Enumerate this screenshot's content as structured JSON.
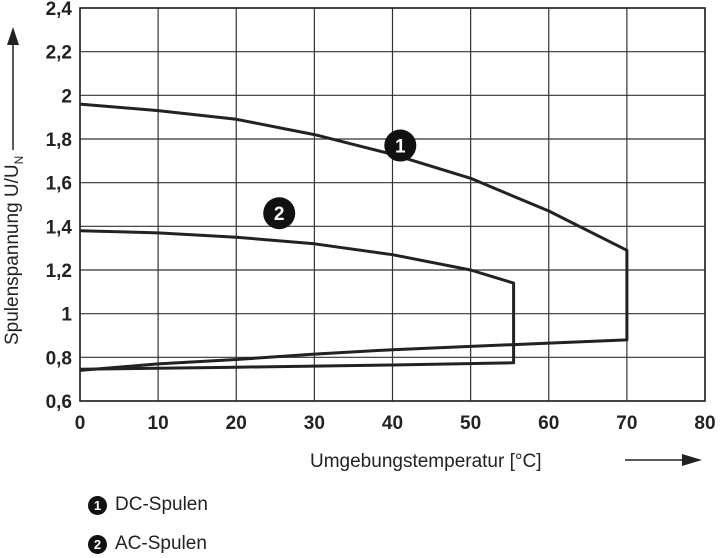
{
  "chart_data": {
    "type": "line",
    "xlabel": "Umgebungstemperatur [°C]",
    "ylabel": "Spulenspannung U/U",
    "ylabel_sub": "N",
    "xlim": [
      0,
      80
    ],
    "ylim": [
      0.6,
      2.4
    ],
    "xticks": [
      "0",
      "10",
      "20",
      "30",
      "40",
      "50",
      "60",
      "70",
      "80"
    ],
    "yticks": [
      "0,6",
      "0,8",
      "1",
      "1,2",
      "1,4",
      "1,6",
      "1,8",
      "2",
      "2,2",
      "2,4"
    ],
    "grid": true,
    "series": [
      {
        "marker": "1",
        "name": "DC-Spulen",
        "points": [
          [
            0,
            1.96
          ],
          [
            10,
            1.93
          ],
          [
            20,
            1.89
          ],
          [
            30,
            1.82
          ],
          [
            40,
            1.73
          ],
          [
            50,
            1.62
          ],
          [
            60,
            1.47
          ],
          [
            70,
            1.29
          ],
          [
            70,
            0.88
          ],
          [
            60,
            0.865
          ],
          [
            50,
            0.85
          ],
          [
            40,
            0.835
          ],
          [
            30,
            0.815
          ],
          [
            20,
            0.79
          ],
          [
            10,
            0.77
          ],
          [
            0,
            0.74
          ]
        ]
      },
      {
        "marker": "2",
        "name": "AC-Spulen",
        "points": [
          [
            0,
            1.38
          ],
          [
            10,
            1.37
          ],
          [
            20,
            1.35
          ],
          [
            30,
            1.32
          ],
          [
            40,
            1.27
          ],
          [
            50,
            1.2
          ],
          [
            55.5,
            1.14
          ],
          [
            55.5,
            0.775
          ],
          [
            40,
            0.765
          ],
          [
            20,
            0.755
          ],
          [
            0,
            0.745
          ]
        ]
      }
    ],
    "series_markers": [
      {
        "label": "1",
        "x": 41,
        "y": 1.77
      },
      {
        "label": "2",
        "x": 25.5,
        "y": 1.46
      }
    ],
    "legend": [
      {
        "marker": "1",
        "label": "DC-Spulen"
      },
      {
        "marker": "2",
        "label": "AC-Spulen"
      }
    ]
  }
}
